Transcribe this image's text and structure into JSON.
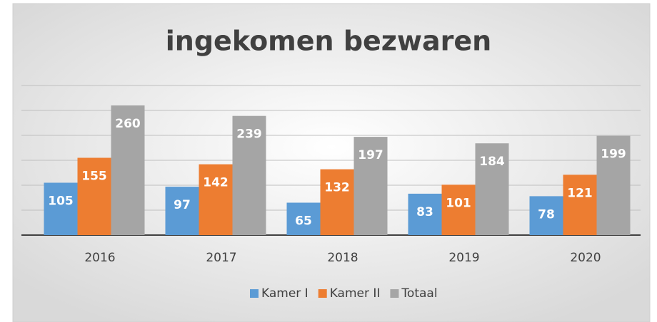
{
  "chart_data": {
    "type": "bar",
    "title": "ingekomen bezwaren",
    "categories": [
      "2016",
      "2017",
      "2018",
      "2019",
      "2020"
    ],
    "series": [
      {
        "name": "Kamer I",
        "color": "#5b9bd5",
        "values": [
          105,
          97,
          65,
          83,
          78
        ]
      },
      {
        "name": "Kamer II",
        "color": "#ed7d31",
        "values": [
          155,
          142,
          132,
          101,
          121
        ]
      },
      {
        "name": "Totaal",
        "color": "#a5a5a5",
        "values": [
          260,
          239,
          197,
          184,
          199
        ]
      }
    ],
    "ylim": [
      0,
      300
    ],
    "yticks": [
      0,
      50,
      100,
      150,
      200,
      250,
      300
    ],
    "grid": true,
    "legend": "bottom"
  }
}
